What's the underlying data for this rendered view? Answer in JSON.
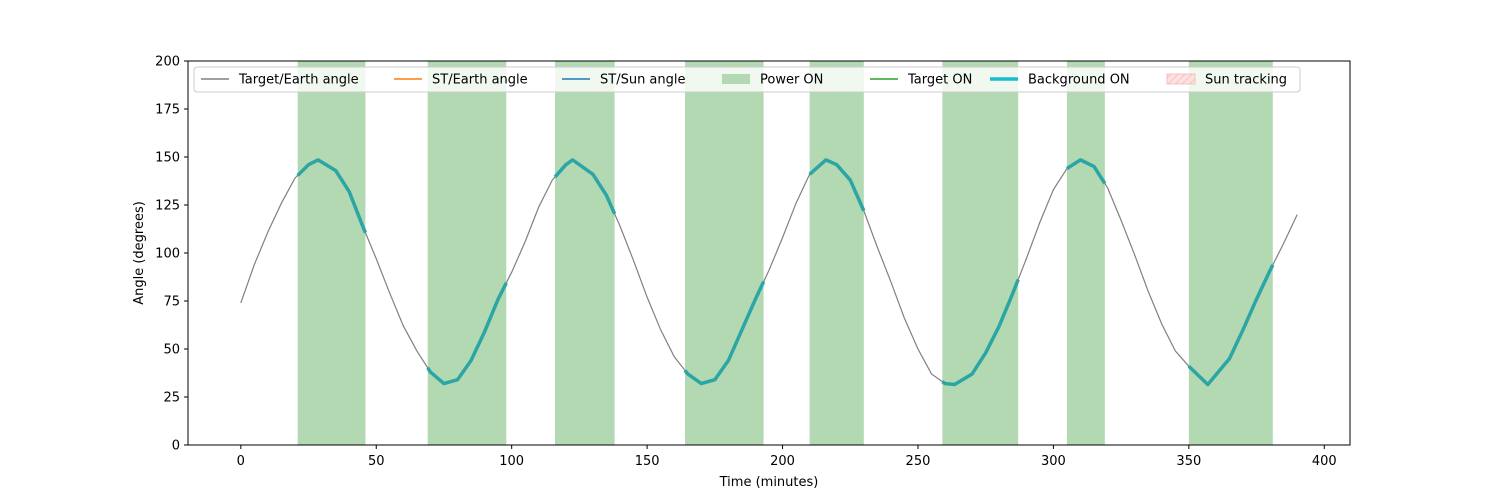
{
  "chart_data": {
    "type": "line",
    "xlabel": "Time (minutes)",
    "ylabel": "Angle (degrees)",
    "xlim": [
      -19.5,
      409.5
    ],
    "ylim": [
      0,
      200
    ],
    "xticks": [
      0,
      50,
      100,
      150,
      200,
      250,
      300,
      350,
      400
    ],
    "yticks": [
      0,
      25,
      50,
      75,
      100,
      125,
      150,
      175,
      200
    ],
    "grid": false,
    "legend_placement": "top",
    "legend": [
      {
        "label": "Target/Earth angle",
        "kind": "line",
        "color": "#808080"
      },
      {
        "label": "ST/Earth angle",
        "kind": "line",
        "color": "#ff7f0e"
      },
      {
        "label": "ST/Sun angle",
        "kind": "line",
        "color": "#1f77b4"
      },
      {
        "label": "Power ON",
        "kind": "patch",
        "color": "#b3d9b3"
      },
      {
        "label": "Target ON",
        "kind": "line",
        "color": "#2ca02c"
      },
      {
        "label": "Background ON",
        "kind": "thickline",
        "color": "#17becf"
      },
      {
        "label": "Sun tracking",
        "kind": "hatch",
        "color": "#f4b6b6"
      }
    ],
    "series": [
      {
        "name": "Target/Earth angle",
        "color": "#808080",
        "x": [
          0,
          5,
          10,
          15,
          20,
          25,
          28.5,
          35,
          40,
          45,
          50,
          55,
          60,
          65,
          70,
          75,
          80,
          85,
          90,
          95,
          100,
          105,
          110,
          115,
          120,
          122.5,
          130,
          135,
          140,
          145,
          150,
          155,
          160,
          165,
          170,
          175,
          180,
          185,
          190,
          195,
          200,
          205,
          210,
          216,
          220,
          225,
          230,
          235,
          240,
          245,
          250,
          255,
          260,
          263.5,
          270,
          275,
          280,
          285,
          290,
          295,
          300,
          305,
          310,
          315,
          320,
          325,
          330,
          335,
          340,
          345,
          350,
          357,
          365,
          370,
          375,
          380,
          385,
          390
        ],
        "y": [
          74,
          94,
          111,
          126,
          139,
          146,
          148.5,
          143,
          132,
          114,
          97,
          79,
          62,
          49,
          38,
          32,
          34,
          44,
          59,
          76,
          90,
          106,
          124,
          138,
          146,
          148.5,
          141,
          130,
          114,
          96,
          77,
          60,
          46,
          37,
          32,
          34,
          44,
          60,
          76,
          91,
          108,
          126,
          141,
          148.5,
          146,
          138,
          122,
          103,
          85,
          66,
          50,
          37,
          32,
          31.5,
          37,
          48,
          62,
          79,
          97,
          116,
          133,
          144,
          148.5,
          145,
          134,
          117,
          99,
          80,
          63,
          49,
          41,
          31.5,
          45,
          60,
          76,
          91,
          105,
          120
        ]
      }
    ],
    "power_on_intervals": [
      [
        21,
        46
      ],
      [
        69,
        98
      ],
      [
        116,
        138
      ],
      [
        164,
        193
      ],
      [
        210,
        230
      ],
      [
        259,
        287
      ],
      [
        305,
        319
      ],
      [
        350,
        381
      ]
    ],
    "background_on_intervals": [
      [
        21,
        46
      ],
      [
        69,
        98
      ],
      [
        116,
        138
      ],
      [
        164,
        193
      ],
      [
        210,
        230
      ],
      [
        259,
        287
      ],
      [
        305,
        319
      ],
      [
        350,
        381
      ]
    ]
  }
}
